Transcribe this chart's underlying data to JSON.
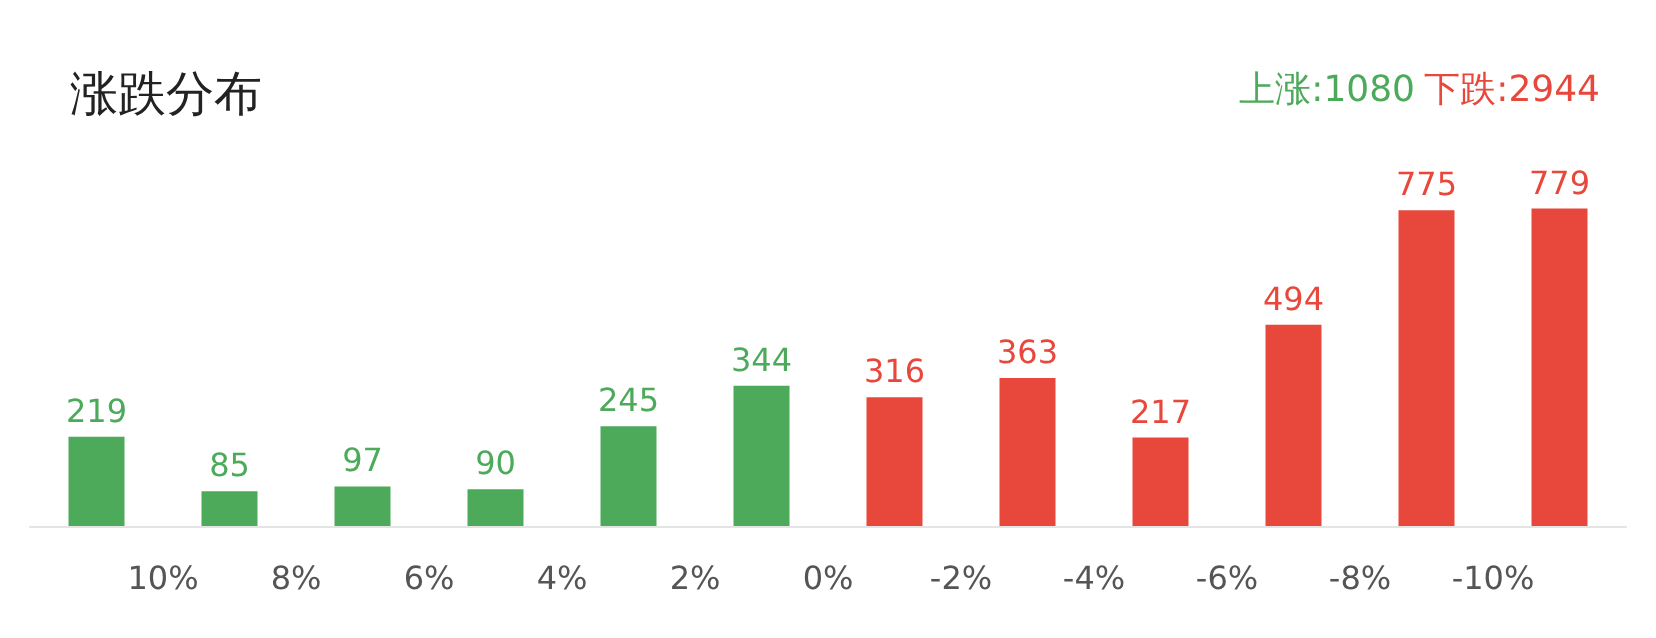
{
  "chart_data": {
    "type": "bar",
    "title": "涨跌分布",
    "annotations": [
      "上涨:1080",
      "下跌:2944"
    ],
    "x": [
      11,
      9,
      7,
      5,
      3,
      1,
      -1,
      -3,
      -5,
      -7,
      -9,
      -11
    ],
    "values": [
      219,
      85,
      97,
      90,
      245,
      344,
      316,
      363,
      217,
      494,
      775,
      779
    ],
    "colors": [
      "#4caa5a",
      "#4caa5a",
      "#4caa5a",
      "#4caa5a",
      "#4caa5a",
      "#4caa5a",
      "#e8473b",
      "#e8473b",
      "#e8473b",
      "#e8473b",
      "#e8473b",
      "#e8473b"
    ],
    "xlim": [
      12,
      -12
    ],
    "xticks": [
      {
        "value": 10,
        "label": "10%"
      },
      {
        "value": 8,
        "label": "8%"
      },
      {
        "value": 6,
        "label": "6%"
      },
      {
        "value": 4,
        "label": "4%"
      },
      {
        "value": 2,
        "label": "2%"
      },
      {
        "value": 0,
        "label": "0%"
      },
      {
        "value": -2,
        "label": "-2%"
      },
      {
        "value": -4,
        "label": "-4%"
      },
      {
        "value": -6,
        "label": "-6%"
      },
      {
        "value": -8,
        "label": "-8%"
      },
      {
        "value": -10,
        "label": "-10%"
      }
    ],
    "tick_labels": "x",
    "data_labels": true
  }
}
